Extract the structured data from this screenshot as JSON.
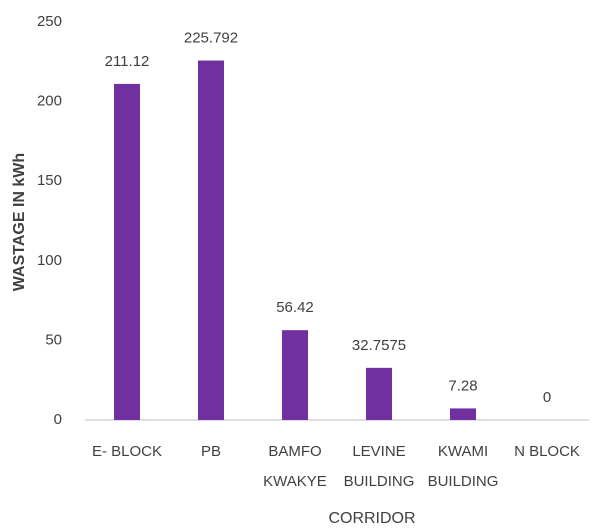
{
  "chart_data": {
    "type": "bar",
    "categories": [
      "E- BLOCK",
      "PB",
      "BAMFO\nKWAKYE",
      "LEVINE\nBUILDING",
      "KWAMI\nBUILDING",
      "N BLOCK"
    ],
    "values": [
      211.12,
      225.792,
      56.42,
      32.7575,
      7.28,
      0
    ],
    "color": "#7030a0",
    "ylim": [
      0,
      250
    ],
    "yticks": [
      0,
      50,
      100,
      150,
      200,
      250
    ],
    "xlabel": "CORRIDOR",
    "ylabel": "WASTAGE IN kWh",
    "grid": false
  }
}
